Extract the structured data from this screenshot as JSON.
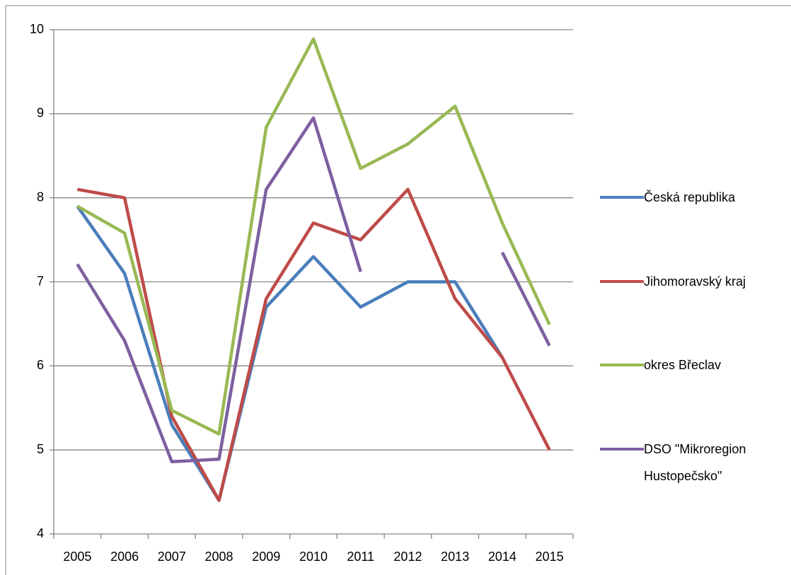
{
  "chart_data": {
    "type": "line",
    "categories": [
      "2005",
      "2006",
      "2007",
      "2008",
      "2009",
      "2010",
      "2011",
      "2012",
      "2013",
      "2014",
      "2015"
    ],
    "series": [
      {
        "name": "Česká republika",
        "color": "#4a7ebb",
        "values": [
          7.9,
          7.1,
          5.3,
          4.4,
          6.7,
          7.3,
          6.7,
          7.0,
          7.0,
          6.1,
          null
        ]
      },
      {
        "name": "Jihomoravský kraj",
        "color": "#be4b48",
        "values": [
          8.1,
          8.0,
          5.4,
          4.4,
          6.8,
          7.7,
          7.5,
          8.1,
          6.8,
          6.1,
          5.0
        ]
      },
      {
        "name": "okres Břeclav",
        "color": "#98b954",
        "values": [
          7.9,
          7.58,
          5.47,
          5.19,
          8.84,
          9.89,
          8.35,
          8.64,
          9.09,
          7.7,
          6.49
        ]
      },
      {
        "name": "DSO \"Mikroregion Hustopečsko\"",
        "color": "#7d60a0",
        "values": [
          7.21,
          6.3,
          4.86,
          4.89,
          8.1,
          8.95,
          7.12,
          null,
          null,
          7.35,
          6.24
        ]
      }
    ],
    "ylim": [
      4,
      10
    ],
    "yticks": [
      4,
      5,
      6,
      7,
      8,
      9,
      10
    ],
    "grid": true,
    "legend": "right"
  }
}
